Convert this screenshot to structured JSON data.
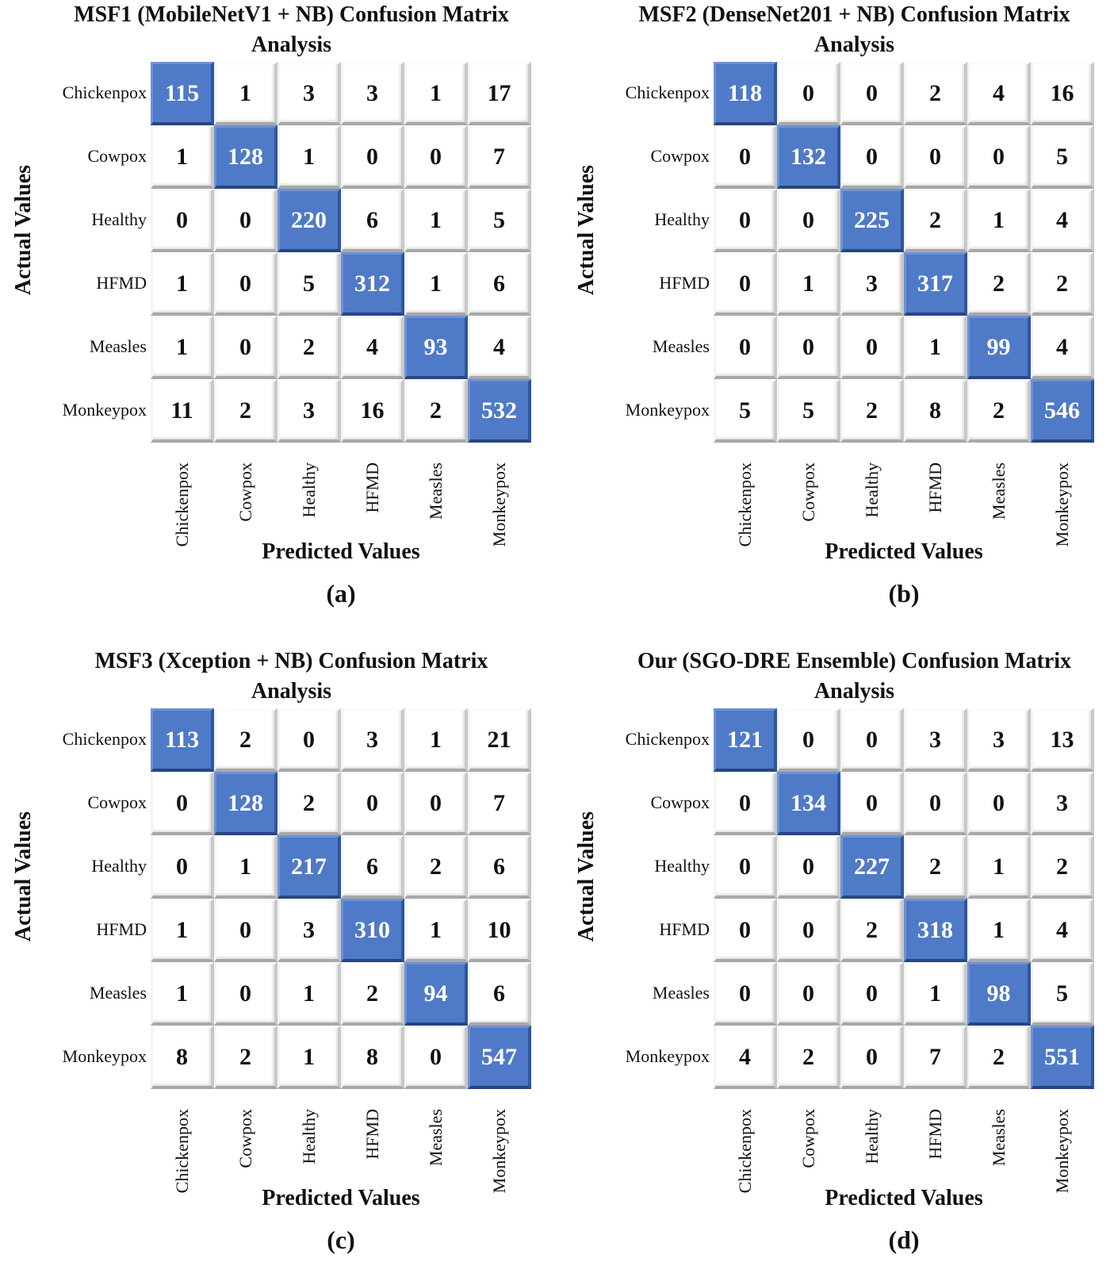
{
  "chart_data": [
    {
      "type": "heatmap",
      "title": "MSF1 (MobileNetV1 + NB) Confusion Matrix Analysis",
      "subtitle": "(a)",
      "xlabel": "Predicted Values",
      "ylabel": "Actual Values",
      "classes": [
        "Chickenpox",
        "Cowpox",
        "Healthy",
        "HFMD",
        "Measles",
        "Monkeypox"
      ],
      "matrix": [
        [
          115,
          1,
          3,
          3,
          1,
          17
        ],
        [
          1,
          128,
          1,
          0,
          0,
          7
        ],
        [
          0,
          0,
          220,
          6,
          1,
          5
        ],
        [
          1,
          0,
          5,
          312,
          1,
          6
        ],
        [
          1,
          0,
          2,
          4,
          93,
          4
        ],
        [
          11,
          2,
          3,
          16,
          2,
          532
        ]
      ]
    },
    {
      "type": "heatmap",
      "title": "MSF2 (DenseNet201 + NB) Confusion Matrix Analysis",
      "subtitle": "(b)",
      "xlabel": "Predicted Values",
      "ylabel": "Actual Values",
      "classes": [
        "Chickenpox",
        "Cowpox",
        "Healthy",
        "HFMD",
        "Measles",
        "Monkeypox"
      ],
      "matrix": [
        [
          118,
          0,
          0,
          2,
          4,
          16
        ],
        [
          0,
          132,
          0,
          0,
          0,
          5
        ],
        [
          0,
          0,
          225,
          2,
          1,
          4
        ],
        [
          0,
          1,
          3,
          317,
          2,
          2
        ],
        [
          0,
          0,
          0,
          1,
          99,
          4
        ],
        [
          5,
          5,
          2,
          8,
          2,
          546
        ]
      ]
    },
    {
      "type": "heatmap",
      "title": "MSF3 (Xception + NB) Confusion Matrix Analysis",
      "subtitle": "(c)",
      "xlabel": "Predicted Values",
      "ylabel": "Actual Values",
      "classes": [
        "Chickenpox",
        "Cowpox",
        "Healthy",
        "HFMD",
        "Measles",
        "Monkeypox"
      ],
      "matrix": [
        [
          113,
          2,
          0,
          3,
          1,
          21
        ],
        [
          0,
          128,
          2,
          0,
          0,
          7
        ],
        [
          0,
          1,
          217,
          6,
          2,
          6
        ],
        [
          1,
          0,
          3,
          310,
          1,
          10
        ],
        [
          1,
          0,
          1,
          2,
          94,
          6
        ],
        [
          8,
          2,
          1,
          8,
          0,
          547
        ]
      ]
    },
    {
      "type": "heatmap",
      "title": "Our (SGO-DRE Ensemble) Confusion Matrix Analysis",
      "subtitle": "(d)",
      "xlabel": "Predicted Values",
      "ylabel": "Actual Values",
      "classes": [
        "Chickenpox",
        "Cowpox",
        "Healthy",
        "HFMD",
        "Measles",
        "Monkeypox"
      ],
      "matrix": [
        [
          121,
          0,
          0,
          3,
          3,
          13
        ],
        [
          0,
          134,
          0,
          0,
          0,
          3
        ],
        [
          0,
          0,
          227,
          2,
          1,
          2
        ],
        [
          0,
          0,
          2,
          318,
          1,
          4
        ],
        [
          0,
          0,
          0,
          1,
          98,
          5
        ],
        [
          4,
          2,
          0,
          7,
          2,
          551
        ]
      ]
    }
  ],
  "colors": {
    "diagonal": "#4f7ac7",
    "offdiagonal": "#ffffff"
  }
}
